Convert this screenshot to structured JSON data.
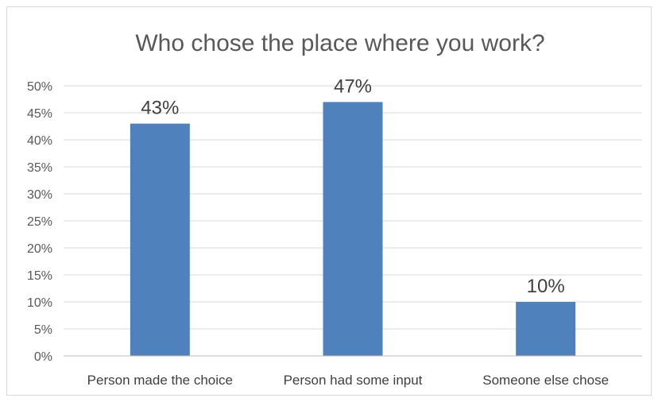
{
  "chart_data": {
    "type": "bar",
    "title": "Who chose the place where you work?",
    "categories": [
      "Person made the choice",
      "Person had some input",
      "Someone else chose"
    ],
    "values": [
      43,
      47,
      10
    ],
    "data_labels": [
      "43%",
      "47%",
      "10%"
    ],
    "ylim": [
      0,
      50
    ],
    "ytick_step": 5,
    "ytick_labels": [
      "0%",
      "5%",
      "10%",
      "15%",
      "20%",
      "25%",
      "30%",
      "35%",
      "40%",
      "45%",
      "50%"
    ],
    "grid": true,
    "legend": "none",
    "bar_color": "#4f81bd"
  }
}
